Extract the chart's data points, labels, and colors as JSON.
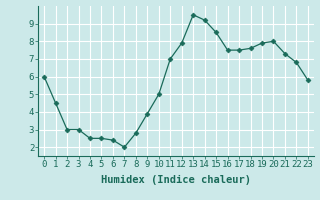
{
  "x": [
    0,
    1,
    2,
    3,
    4,
    5,
    6,
    7,
    8,
    9,
    10,
    11,
    12,
    13,
    14,
    15,
    16,
    17,
    18,
    19,
    20,
    21,
    22,
    23
  ],
  "y": [
    6.0,
    4.5,
    3.0,
    3.0,
    2.5,
    2.5,
    2.4,
    2.0,
    2.8,
    3.9,
    5.0,
    7.0,
    7.9,
    9.5,
    9.2,
    8.5,
    7.5,
    7.5,
    7.6,
    7.9,
    8.0,
    7.3,
    6.8,
    5.8
  ],
  "line_color": "#1a6b5a",
  "marker": "D",
  "marker_size": 2.5,
  "bg_color": "#cce9e9",
  "grid_color": "#ffffff",
  "xlabel": "Humidex (Indice chaleur)",
  "xlabel_fontsize": 7.5,
  "tick_fontsize": 6.5,
  "ylim": [
    1.5,
    10.0
  ],
  "xlim": [
    -0.5,
    23.5
  ],
  "yticks": [
    2,
    3,
    4,
    5,
    6,
    7,
    8,
    9
  ],
  "xticks": [
    0,
    1,
    2,
    3,
    4,
    5,
    6,
    7,
    8,
    9,
    10,
    11,
    12,
    13,
    14,
    15,
    16,
    17,
    18,
    19,
    20,
    21,
    22,
    23
  ]
}
